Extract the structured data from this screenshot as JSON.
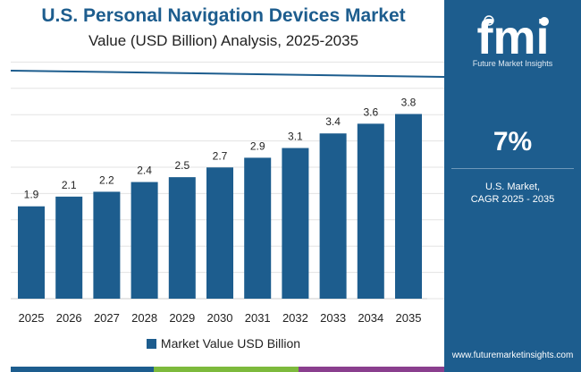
{
  "header": {
    "title": "U.S. Personal Navigation Devices Market",
    "subtitle": "Value (USD Billion) Analysis, 2025-2035"
  },
  "sidebar": {
    "logo_text": "fmi",
    "logo_tagline": "Future Market Insights",
    "cagr_value": "7%",
    "cagr_label_line1": "U.S. Market,",
    "cagr_label_line2": "CAGR 2025 - 2035",
    "url": "www.futuremarketinsights.com",
    "bg_color": "#1d5d8e"
  },
  "legend": {
    "label": "Market Value USD Billion"
  },
  "colors": {
    "bar": "#1d5d8e",
    "trend_line": "#1d5d8e",
    "band": [
      "#1d5d8e",
      "#7dba3c",
      "#8a3f8e"
    ]
  },
  "chart_data": {
    "type": "bar",
    "categories": [
      "2025",
      "2026",
      "2027",
      "2028",
      "2029",
      "2030",
      "2031",
      "2032",
      "2033",
      "2034",
      "2035"
    ],
    "series": [
      {
        "name": "Market Value USD Billion",
        "values": [
          1.9,
          2.1,
          2.2,
          2.4,
          2.5,
          2.7,
          2.9,
          3.1,
          3.4,
          3.6,
          3.8
        ]
      }
    ],
    "data_labels": [
      "1.9",
      "2.1",
      "2.2",
      "2.4",
      "2.5",
      "2.7",
      "2.9",
      "3.1",
      "3.4",
      "3.6",
      "3.8"
    ],
    "ylim": [
      0,
      4.6
    ],
    "grid": true,
    "legend_position": "bottom"
  }
}
